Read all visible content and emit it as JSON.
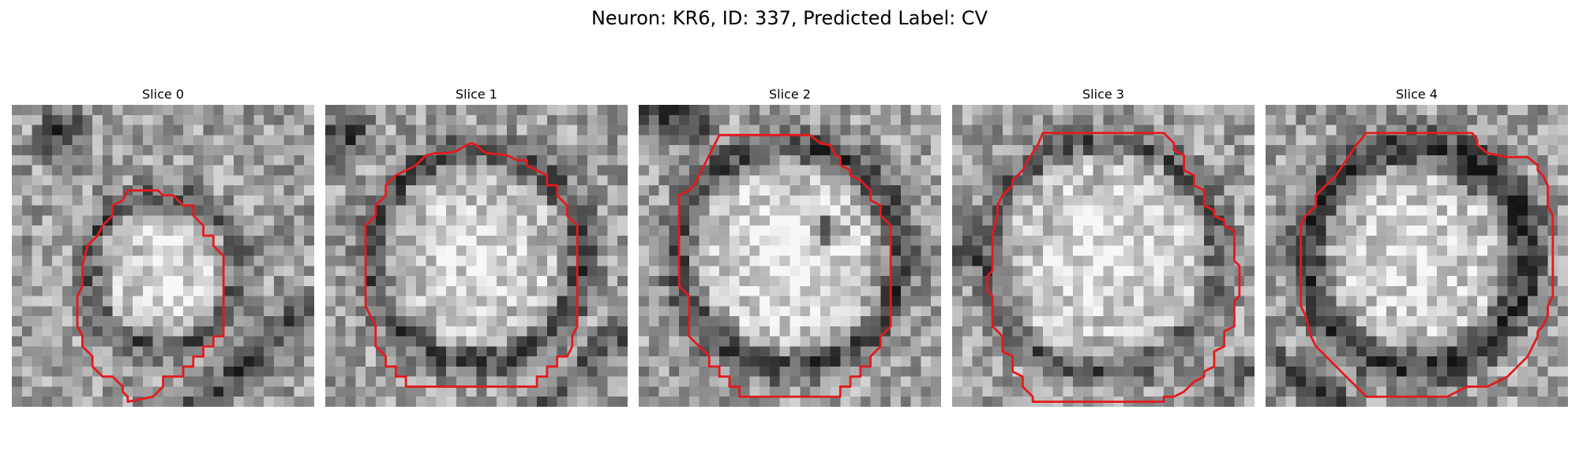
{
  "figure": {
    "title": "Neuron: KR6, ID: 337, Predicted Label: CV"
  },
  "colors": {
    "contour": "#e41a1c",
    "background": "#ffffff"
  },
  "panels": [
    {
      "title": "Slice 0"
    },
    {
      "title": "Slice 1"
    },
    {
      "title": "Slice 2"
    },
    {
      "title": "Slice 3"
    },
    {
      "title": "Slice 4"
    }
  ]
}
